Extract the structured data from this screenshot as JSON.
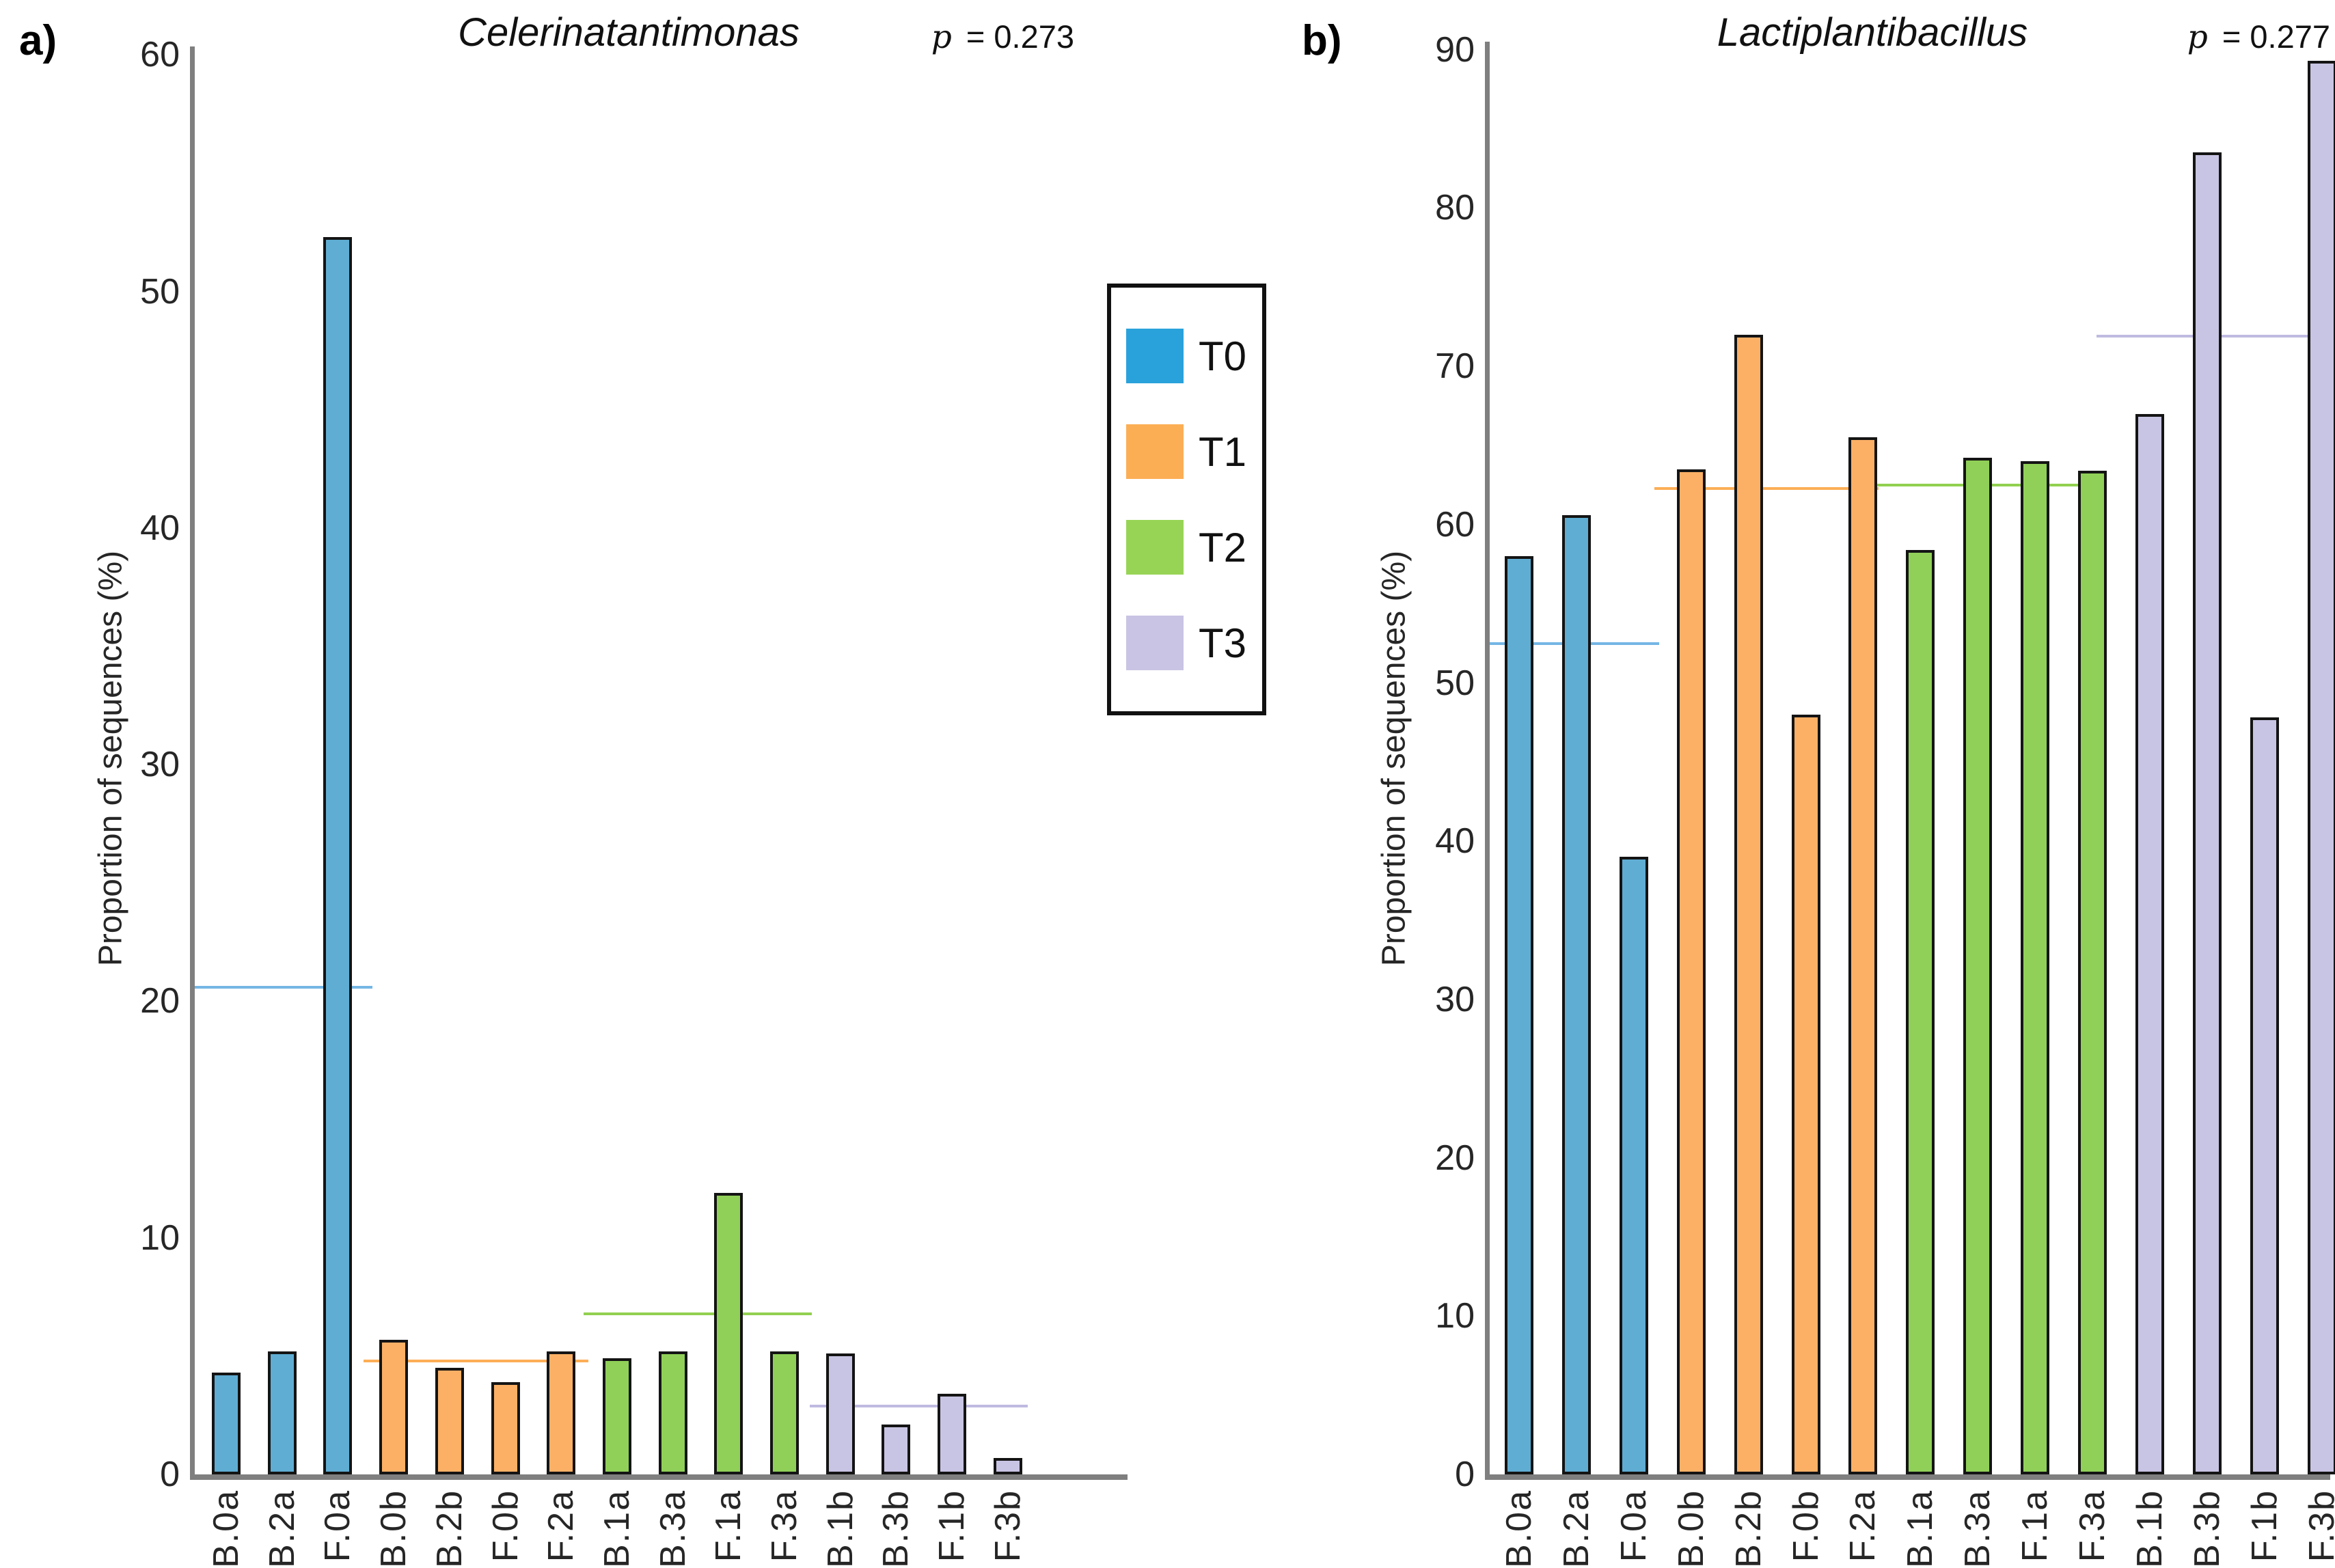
{
  "figure": {
    "background": "#ffffff",
    "legend": {
      "position": "center-between-panels",
      "items": [
        {
          "label": "T0",
          "color": "#29a2dc"
        },
        {
          "label": "T1",
          "color": "#fcae55"
        },
        {
          "label": "T2",
          "color": "#97d455"
        },
        {
          "label": "T3",
          "color": "#c9c4e3"
        }
      ]
    },
    "colors": {
      "bar_fill": {
        "T0": "#5fadd3",
        "T1": "#fbb066",
        "T2": "#90d058",
        "T3": "#c8c4e3"
      },
      "bar_border": "#141414",
      "mean_line": {
        "T0": "#74b6e4",
        "T1": "#fcae55",
        "T2": "#92d050",
        "T3": "#bfbae0"
      },
      "axis": "#7f7f7f"
    }
  },
  "chart_data": [
    {
      "type": "bar",
      "panel_label": "a)",
      "title": "Celerinatantimonas",
      "p_symbol": "p",
      "p_text": " = 0.273",
      "ylabel": "Proportion of sequences (%)",
      "xlabel": "",
      "ylim": [
        0,
        60
      ],
      "yticks": [
        0,
        10,
        20,
        30,
        40,
        50,
        60
      ],
      "grid": false,
      "categories": [
        "B.0a",
        "B.2a",
        "F.0a",
        "B.0b",
        "B.2b",
        "F.0b",
        "F.2a",
        "B.1a",
        "B.3a",
        "F.1a",
        "F.3a",
        "B.1b",
        "B.3b",
        "F.1b",
        "F.3b"
      ],
      "values": [
        4.3,
        5.2,
        52.3,
        5.7,
        4.5,
        3.9,
        5.2,
        4.9,
        5.2,
        11.9,
        5.2,
        5.1,
        2.1,
        3.4,
        0.7
      ],
      "group_of_bar": [
        "T0",
        "T0",
        "T0",
        "T1",
        "T1",
        "T1",
        "T1",
        "T2",
        "T2",
        "T2",
        "T2",
        "T3",
        "T3",
        "T3",
        "T3"
      ],
      "group_means": [
        {
          "group": "T0",
          "mean": 20.6
        },
        {
          "group": "T1",
          "mean": 4.8
        },
        {
          "group": "T2",
          "mean": 6.8
        },
        {
          "group": "T3",
          "mean": 2.9
        }
      ]
    },
    {
      "type": "bar",
      "panel_label": "b)",
      "title": "Lactiplantibacillus",
      "p_symbol": "p",
      "p_text": " = 0.277",
      "ylabel": "Proportion of sequences (%)",
      "xlabel": "",
      "ylim": [
        0,
        90
      ],
      "yticks": [
        0,
        10,
        20,
        30,
        40,
        50,
        60,
        70,
        80,
        90
      ],
      "grid": false,
      "categories": [
        "B.0a",
        "B.2a",
        "F.0a",
        "B.0b",
        "B.2b",
        "F.0b",
        "F.2a",
        "B.1a",
        "B.3a",
        "F.1a",
        "F.3a",
        "B.1b",
        "B.3b",
        "F.1b",
        "F.3b"
      ],
      "values": [
        58.0,
        60.6,
        39.0,
        63.5,
        72.0,
        48.0,
        65.5,
        58.4,
        64.2,
        64.0,
        63.4,
        67.0,
        83.5,
        47.8,
        89.3
      ],
      "group_of_bar": [
        "T0",
        "T0",
        "T0",
        "T1",
        "T1",
        "T1",
        "T1",
        "T2",
        "T2",
        "T2",
        "T2",
        "T3",
        "T3",
        "T3",
        "T3"
      ],
      "group_means": [
        {
          "group": "T0",
          "mean": 52.5
        },
        {
          "group": "T1",
          "mean": 62.3
        },
        {
          "group": "T2",
          "mean": 62.5
        },
        {
          "group": "T3",
          "mean": 71.9
        }
      ]
    }
  ]
}
